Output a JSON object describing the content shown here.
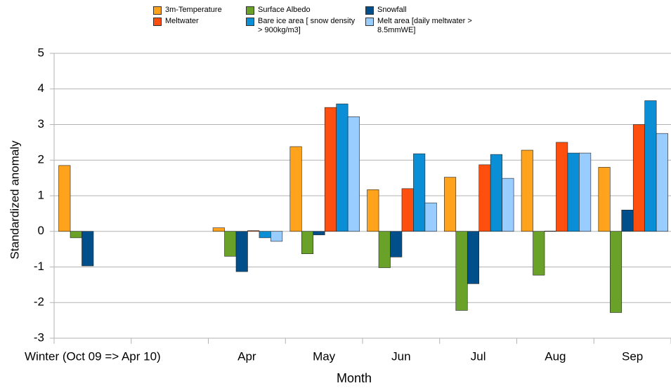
{
  "chart_data": {
    "type": "bar",
    "x_label": "Month",
    "y_label": "Standardized anomaly",
    "categories": [
      "Winter (Oct 09 => Apr 10)",
      null,
      "Apr",
      "May",
      "Jun",
      "Jul",
      "Aug",
      "Sep"
    ],
    "series": [
      {
        "name": "3m-Temperature",
        "color": "#ffa21c",
        "values": [
          1.85,
          null,
          0.1,
          2.38,
          1.17,
          1.52,
          2.28,
          1.8
        ]
      },
      {
        "name": "Surface Albedo",
        "color": "#6aa229",
        "values": [
          -0.18,
          null,
          -0.7,
          -0.63,
          -1.02,
          -2.22,
          -1.23,
          -2.28
        ]
      },
      {
        "name": "Snowfall",
        "color": "#004f8a",
        "values": [
          -0.97,
          null,
          -1.13,
          -0.1,
          -0.72,
          -1.47,
          0.01,
          0.6
        ]
      },
      {
        "name": "Meltwater",
        "color": "#ff4f0f",
        "values": [
          null,
          null,
          0.02,
          3.48,
          1.2,
          1.87,
          2.5,
          3.0
        ]
      },
      {
        "name": "Bare ice area [ snow density > 900kg/m3]",
        "color": "#0a8fd6",
        "values": [
          null,
          null,
          -0.18,
          3.58,
          2.18,
          2.16,
          2.2,
          3.67
        ]
      },
      {
        "name": "Melt area [daily meltwater > 8.5mmWE]",
        "color": "#99ccff",
        "values": [
          null,
          null,
          -0.28,
          3.22,
          0.8,
          1.49,
          2.2,
          2.75
        ]
      }
    ],
    "ylim": [
      -3,
      5
    ],
    "yticks": [
      -3,
      -2,
      -1,
      0,
      1,
      2,
      3,
      4,
      5
    ],
    "grid": true
  }
}
